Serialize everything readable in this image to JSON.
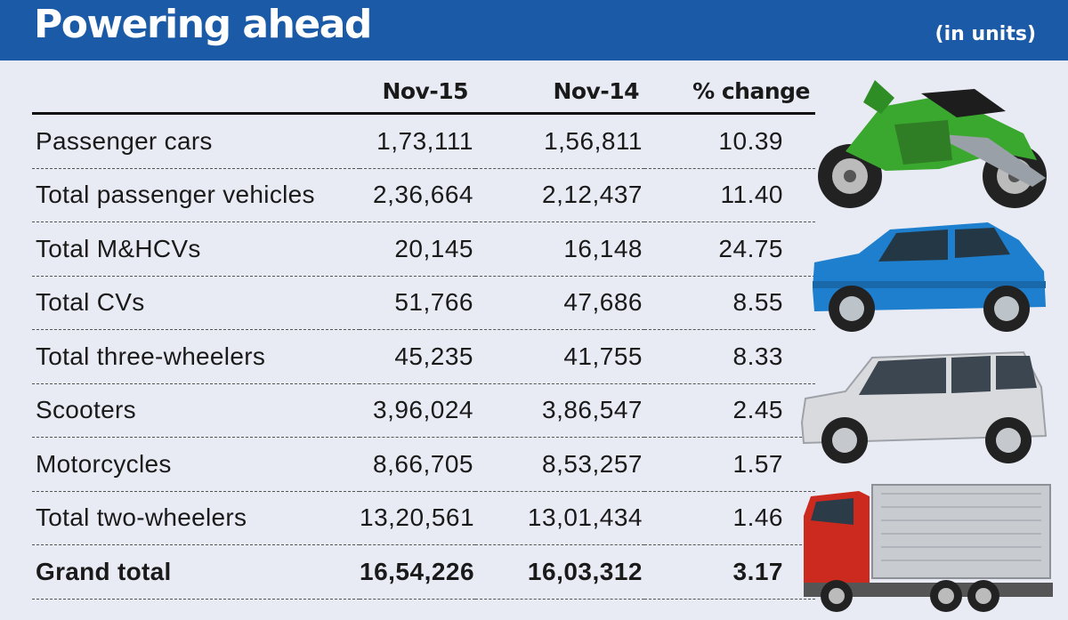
{
  "header": {
    "title": "Powering ahead",
    "units": "(in units)"
  },
  "colors": {
    "header_background": "#1a5aa6",
    "header_text": "#ffffff",
    "page_background": "#e8ebf4"
  },
  "illustrations": [
    "motorcycle-icon",
    "hatchback-car-icon",
    "minivan-icon",
    "truck-icon"
  ],
  "chart_data": {
    "type": "table",
    "columns": [
      "",
      "Nov-15",
      "Nov-14",
      "% change"
    ],
    "rows": [
      {
        "label": "Passenger cars",
        "nov15": "1,73,111",
        "nov14": "1,56,811",
        "change": "10.39"
      },
      {
        "label": "Total passenger vehicles",
        "nov15": "2,36,664",
        "nov14": "2,12,437",
        "change": "11.40"
      },
      {
        "label": "Total M&HCVs",
        "nov15": "20,145",
        "nov14": "16,148",
        "change": "24.75"
      },
      {
        "label": "Total CVs",
        "nov15": "51,766",
        "nov14": "47,686",
        "change": "8.55"
      },
      {
        "label": "Total three-wheelers",
        "nov15": "45,235",
        "nov14": "41,755",
        "change": "8.33"
      },
      {
        "label": "Scooters",
        "nov15": "3,96,024",
        "nov14": "3,86,547",
        "change": "2.45"
      },
      {
        "label": "Motorcycles",
        "nov15": "8,66,705",
        "nov14": "8,53,257",
        "change": "1.57"
      },
      {
        "label": "Total two-wheelers",
        "nov15": "13,20,561",
        "nov14": "13,01,434",
        "change": "1.46"
      },
      {
        "label": "Grand total",
        "nov15": "16,54,226",
        "nov14": "16,03,312",
        "change": "3.17"
      }
    ]
  }
}
